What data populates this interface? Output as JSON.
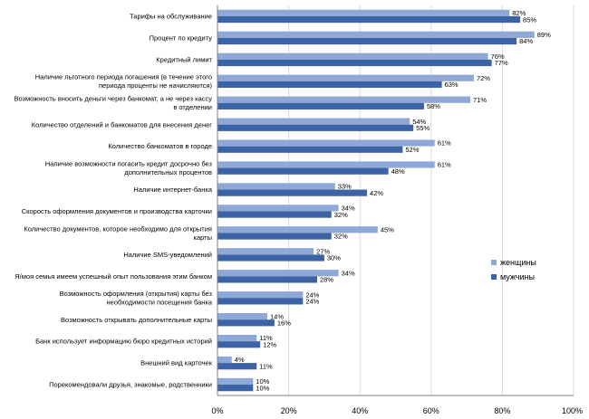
{
  "chart_data": {
    "type": "bar",
    "orientation": "horizontal",
    "categories": [
      [
        "Тарифы на обслуживание"
      ],
      [
        "Процент по кредиту"
      ],
      [
        "Кредитный лимит"
      ],
      [
        "Наличие льготного периода погашения (в течение этого",
        "периода проценты не начисляются)"
      ],
      [
        "Возможность вносить деньги через банкомат, а не через кассу",
        "в отделении"
      ],
      [
        "Количество отделений и банкоматов для внесения денег"
      ],
      [
        "Количество банкоматов в городе"
      ],
      [
        "Наличие возможности погасить кредит досрочно без",
        "дополнительных процентов"
      ],
      [
        "Наличие интернет-банка"
      ],
      [
        "Скорость оформления документов и производства карточки"
      ],
      [
        "Количество документов, которое необходимо для открытия",
        "карты"
      ],
      [
        "Наличие SMS-уведомлений"
      ],
      [
        "Я/моя семья имеем успешный опыт пользования этим банком"
      ],
      [
        "Возможность оформления (открытия) карты без",
        "необходимости посещения банка"
      ],
      [
        "Возможность открывать дополнительные карты"
      ],
      [
        "Банк использует информацию бюро кредитных историй"
      ],
      [
        "Внешний вид карточек"
      ],
      [
        "Порекомендовали друзья, знакомые, родственники"
      ]
    ],
    "series": [
      {
        "name": "женщины",
        "color": "#8fa8d6",
        "values": [
          82,
          89,
          76,
          72,
          71,
          54,
          61,
          61,
          33,
          34,
          45,
          27,
          34,
          24,
          14,
          11,
          4,
          10
        ],
        "labels": [
          "82%",
          "89%",
          "76%",
          "72%",
          "71%",
          "54%",
          "61%",
          "61%",
          "33%",
          "34%",
          "45%",
          "27%",
          "34%",
          "24%",
          "14%",
          "11%",
          "4%",
          "10%"
        ]
      },
      {
        "name": "мужчины",
        "color": "#3b63a6",
        "values": [
          85,
          84,
          77,
          63,
          58,
          55,
          52,
          48,
          42,
          32,
          32,
          30,
          28,
          24,
          16,
          12,
          11,
          10
        ],
        "labels": [
          "85%",
          "84%",
          "77%",
          "63%",
          "58%",
          "55%",
          "52%",
          "48%",
          "42%",
          "32%",
          "32%",
          "30%",
          "28%",
          "24%",
          "16%",
          "12%",
          "11%",
          "10%"
        ]
      }
    ],
    "xlim": [
      0,
      100
    ],
    "xticks": [
      0,
      20,
      40,
      60,
      80,
      100
    ],
    "xtick_labels": [
      "0%",
      "20%",
      "40%",
      "60%",
      "80%",
      "100%"
    ],
    "title": "",
    "xlabel": "",
    "ylabel": "",
    "legend_position": "right",
    "grid": "vertical"
  }
}
